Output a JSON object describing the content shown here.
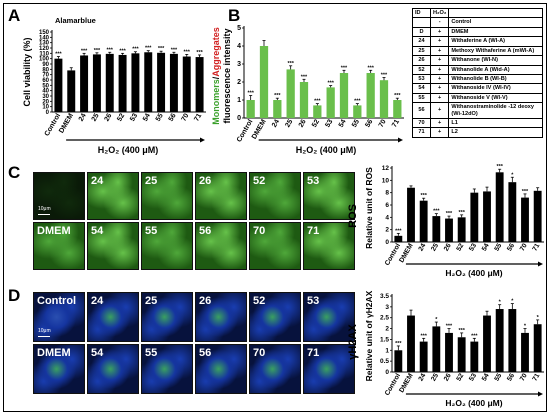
{
  "panels": {
    "a": {
      "letter": "A",
      "subtitle": "Alamarblue",
      "ylabel": "Cell viability (%)",
      "xlabel": "H₂O₂ (400 μM)"
    },
    "b": {
      "letter": "B",
      "ylabel_monomers": "Monomers",
      "ylabel_slash": "/",
      "ylabel_aggregates": "Aggregates",
      "ylabel_line2": "fluorescence intensity",
      "xlabel": "H₂O₂ (400 μM)"
    },
    "c": {
      "letter": "C",
      "side_label": "ROS",
      "ylabel": "Relative unit of ROS",
      "xlabel": "H₂O₂ (400 μM)"
    },
    "d": {
      "letter": "D",
      "side_label": "γH2AX",
      "ylabel": "Relative unit of γH2AX",
      "xlabel": "H₂O₂ (400 μM)"
    }
  },
  "micrographs": {
    "c_top": [
      "",
      "24",
      "25",
      "26",
      "52",
      "53"
    ],
    "c_bottom": [
      "DMEM",
      "54",
      "55",
      "56",
      "70",
      "71"
    ],
    "d_top": [
      "Control",
      "24",
      "25",
      "26",
      "52",
      "53"
    ],
    "d_bottom": [
      "DMEM",
      "54",
      "55",
      "56",
      "70",
      "71"
    ],
    "scale_text": "10μm"
  },
  "legend_table": {
    "headers": [
      "ID",
      "H₂O₂",
      ""
    ],
    "rows": [
      {
        "id": "",
        "h2o2": "-",
        "name": "Control"
      },
      {
        "id": "D",
        "h2o2": "+",
        "name": "DMEM"
      },
      {
        "id": "24",
        "h2o2": "+",
        "name": "Withaferine A (WI-A)"
      },
      {
        "id": "25",
        "h2o2": "+",
        "name": "Methoxy Withaferine A (mWI-A)"
      },
      {
        "id": "26",
        "h2o2": "+",
        "name": "Withanone (WI-N)"
      },
      {
        "id": "52",
        "h2o2": "+",
        "name": "Withanolide A (Wid-A)"
      },
      {
        "id": "53",
        "h2o2": "+",
        "name": "Withanolide B (WI-B)"
      },
      {
        "id": "54",
        "h2o2": "+",
        "name": "Withanoside IV (WI-IV)"
      },
      {
        "id": "55",
        "h2o2": "+",
        "name": "Withanoside V (WI-V)"
      },
      {
        "id": "56",
        "h2o2": "+",
        "name": "Withanostraminolide -12 deoxy (Wi-12dO)"
      },
      {
        "id": "70",
        "h2o2": "+",
        "name": "L1"
      },
      {
        "id": "71",
        "h2o2": "+",
        "name": "L2"
      }
    ]
  },
  "chart_data": [
    {
      "type": "bar",
      "panel": "A",
      "title": "Alamarblue",
      "categories": [
        "Control",
        "DMEM",
        "24",
        "25",
        "26",
        "52",
        "53",
        "54",
        "55",
        "56",
        "70",
        "71"
      ],
      "values": [
        100,
        78,
        106,
        108,
        109,
        107,
        110,
        112,
        111,
        109,
        104,
        103
      ],
      "errors": [
        4,
        5,
        4,
        3,
        3,
        3,
        3,
        3,
        3,
        3,
        4,
        4
      ],
      "significance": [
        "***",
        "",
        "***",
        "***",
        "***",
        "***",
        "***",
        "***",
        "***",
        "***",
        "***",
        "***"
      ],
      "ylabel": "Cell viability (%)",
      "xlabel": "H₂O₂ (400 μM)",
      "ylim": [
        0,
        150
      ],
      "yticks": [
        0,
        10,
        20,
        30,
        40,
        50,
        60,
        70,
        80,
        90,
        100,
        110,
        120,
        130,
        140,
        150
      ],
      "bar_color": "#000000"
    },
    {
      "type": "bar",
      "panel": "B",
      "categories": [
        "Control",
        "DMEM",
        "24",
        "25",
        "26",
        "52",
        "53",
        "54",
        "55",
        "56",
        "70",
        "71"
      ],
      "values": [
        1.0,
        4.0,
        1.0,
        2.7,
        2.0,
        0.7,
        1.7,
        2.5,
        0.7,
        2.5,
        2.1,
        1.0
      ],
      "errors": [
        0.25,
        0.3,
        0.1,
        0.2,
        0.15,
        0.1,
        0.1,
        0.15,
        0.1,
        0.15,
        0.15,
        0.1
      ],
      "significance": [
        "***",
        "",
        "***",
        "***",
        "***",
        "***",
        "***",
        "***",
        "***",
        "***",
        "***",
        "***"
      ],
      "xlabel": "H₂O₂ (400 μM)",
      "ylim": [
        0,
        5
      ],
      "yticks": [
        0,
        1,
        2,
        3,
        4,
        5
      ],
      "bar_color": "#6abf4b"
    },
    {
      "type": "bar",
      "panel": "C",
      "categories": [
        "Control",
        "DMEM",
        "24",
        "25",
        "26",
        "52",
        "53",
        "54",
        "55",
        "56",
        "70",
        "71"
      ],
      "values": [
        1.0,
        8.8,
        6.7,
        4.2,
        3.8,
        4.0,
        8.0,
        8.2,
        11.3,
        9.7,
        7.2,
        8.3
      ],
      "errors": [
        0.4,
        0.3,
        0.4,
        0.4,
        0.4,
        0.4,
        0.6,
        0.7,
        0.5,
        0.8,
        0.6,
        0.5
      ],
      "significance": [
        "***",
        "",
        "***",
        "***",
        "***",
        "***",
        "",
        "",
        "***",
        "*",
        "***",
        ""
      ],
      "ylabel": "Relative unit of ROS",
      "xlabel": "H₂O₂ (400 μM)",
      "ylim": [
        0,
        12
      ],
      "yticks": [
        0,
        2,
        4,
        6,
        8,
        10,
        12
      ],
      "bar_color": "#000000"
    },
    {
      "type": "bar",
      "panel": "D",
      "categories": [
        "Control",
        "DMEM",
        "24",
        "25",
        "26",
        "52",
        "53",
        "54",
        "55",
        "56",
        "70",
        "71"
      ],
      "values": [
        1.0,
        2.6,
        1.4,
        2.1,
        1.8,
        1.6,
        1.4,
        2.6,
        2.9,
        2.9,
        1.8,
        2.2
      ],
      "errors": [
        0.2,
        0.25,
        0.15,
        0.2,
        0.2,
        0.2,
        0.15,
        0.2,
        0.2,
        0.25,
        0.2,
        0.2
      ],
      "significance": [
        "***",
        "",
        "***",
        "*",
        "***",
        "***",
        "***",
        "",
        "*",
        "*",
        "*",
        "*"
      ],
      "ylabel": "Relative unit of γH2AX",
      "xlabel": "H₂O₂ (400 μM)",
      "ylim": [
        0,
        3.5
      ],
      "yticks": [
        0,
        0.5,
        1,
        1.5,
        2,
        2.5,
        3,
        3.5
      ],
      "bar_color": "#000000"
    }
  ]
}
